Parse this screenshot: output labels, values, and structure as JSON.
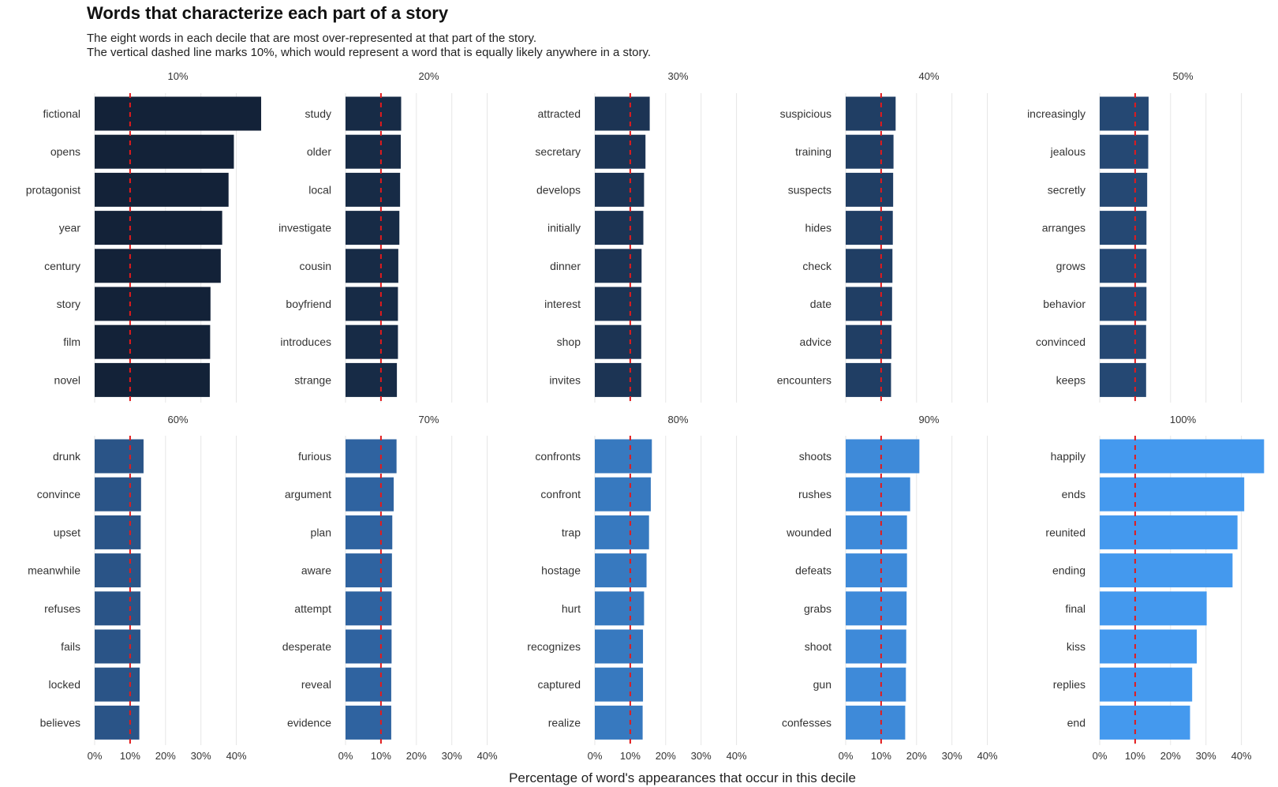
{
  "title": "Words that characterize each part of a story",
  "subtitle": [
    "The eight words in each decile that are most over-represented at that part of the story.",
    "The vertical dashed line marks 10%, which would represent a word that is equally likely anywhere in a story."
  ],
  "chart_data": {
    "type": "bar",
    "orientation": "horizontal",
    "facet_layout": "2 rows x 5 columns",
    "xlabel": "Percentage of word's appearances that occur in this decile",
    "x_ticks": [
      "0%",
      "10%",
      "20%",
      "30%",
      "40%"
    ],
    "xlim": [
      0,
      0.47
    ],
    "reference_line": {
      "x": 0.1,
      "style": "dashed",
      "color": "#e31a1c"
    },
    "grid": "vertical only",
    "colors": {
      "10%": "#132238",
      "20%": "#172b46",
      "30%": "#1c3454",
      "40%": "#203e64",
      "50%": "#254873",
      "60%": "#2a5487",
      "70%": "#2f63a0",
      "80%": "#3779bf",
      "90%": "#3e8ad9",
      "100%": "#4499ee"
    },
    "panels": [
      {
        "decile": "10%",
        "words": [
          "fictional",
          "opens",
          "protagonist",
          "year",
          "century",
          "story",
          "film",
          "novel"
        ],
        "values": [
          0.47,
          0.393,
          0.378,
          0.36,
          0.356,
          0.327,
          0.326,
          0.325
        ]
      },
      {
        "decile": "20%",
        "words": [
          "study",
          "older",
          "local",
          "investigate",
          "cousin",
          "boyfriend",
          "introduces",
          "strange"
        ],
        "values": [
          0.157,
          0.156,
          0.154,
          0.152,
          0.149,
          0.148,
          0.148,
          0.145
        ]
      },
      {
        "decile": "30%",
        "words": [
          "attracted",
          "secretary",
          "develops",
          "initially",
          "dinner",
          "interest",
          "shop",
          "invites"
        ],
        "values": [
          0.155,
          0.143,
          0.139,
          0.137,
          0.132,
          0.131,
          0.131,
          0.131
        ]
      },
      {
        "decile": "40%",
        "words": [
          "suspicious",
          "training",
          "suspects",
          "hides",
          "check",
          "date",
          "advice",
          "encounters"
        ],
        "values": [
          0.141,
          0.135,
          0.134,
          0.133,
          0.132,
          0.131,
          0.129,
          0.128
        ]
      },
      {
        "decile": "50%",
        "words": [
          "increasingly",
          "jealous",
          "secretly",
          "arranges",
          "grows",
          "behavior",
          "convinced",
          "keeps"
        ],
        "values": [
          0.138,
          0.137,
          0.134,
          0.132,
          0.132,
          0.132,
          0.131,
          0.131
        ]
      },
      {
        "decile": "60%",
        "words": [
          "drunk",
          "convince",
          "upset",
          "meanwhile",
          "refuses",
          "fails",
          "locked",
          "believes"
        ],
        "values": [
          0.138,
          0.131,
          0.13,
          0.13,
          0.129,
          0.129,
          0.127,
          0.126
        ]
      },
      {
        "decile": "70%",
        "words": [
          "furious",
          "argument",
          "plan",
          "aware",
          "attempt",
          "desperate",
          "reveal",
          "evidence"
        ],
        "values": [
          0.144,
          0.136,
          0.132,
          0.131,
          0.13,
          0.13,
          0.129,
          0.129
        ]
      },
      {
        "decile": "80%",
        "words": [
          "confronts",
          "confront",
          "trap",
          "hostage",
          "hurt",
          "recognizes",
          "captured",
          "realize"
        ],
        "values": [
          0.161,
          0.158,
          0.153,
          0.146,
          0.139,
          0.136,
          0.136,
          0.135
        ]
      },
      {
        "decile": "90%",
        "words": [
          "shoots",
          "rushes",
          "wounded",
          "defeats",
          "grabs",
          "shoot",
          "gun",
          "confesses"
        ],
        "values": [
          0.208,
          0.182,
          0.173,
          0.173,
          0.172,
          0.171,
          0.17,
          0.168
        ]
      },
      {
        "decile": "100%",
        "words": [
          "happily",
          "ends",
          "reunited",
          "ending",
          "final",
          "kiss",
          "replies",
          "end"
        ],
        "values": [
          0.464,
          0.408,
          0.389,
          0.375,
          0.302,
          0.274,
          0.261,
          0.255
        ]
      }
    ]
  }
}
